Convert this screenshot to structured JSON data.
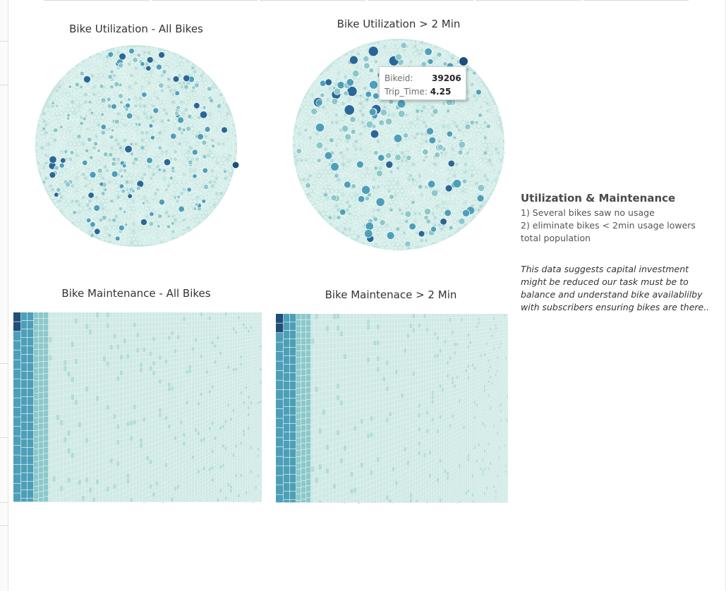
{
  "colors": {
    "light": "#c7e6e1",
    "mid": "#8cc8ca",
    "teal": "#4d9fb9",
    "dark": "#2a6798",
    "darkest": "#1f4e79"
  },
  "chart_data": [
    {
      "type": "packed-bubble",
      "title": "Bike Utilization - All Bikes",
      "highlight": {
        "bikeid": "",
        "trip_time": ""
      }
    },
    {
      "type": "packed-bubble",
      "title": "Bike Utilization > 2 Min",
      "tooltip": {
        "bikeid_label": "Bikeid:",
        "bikeid": "39206",
        "trip_time_label": "Trip_Time:",
        "trip_time": "4.25"
      }
    },
    {
      "type": "treemap",
      "title": "Bike Maintenance - All Bikes"
    },
    {
      "type": "treemap",
      "title": "Bike Maintenace > 2 Min"
    }
  ],
  "notes": {
    "title": "Utilization & Maintenance",
    "line1": "1) Several bikes saw no usage",
    "line2": "2) eliminate bikes < 2min usage lowers",
    "line3": "total population",
    "italic1": "This data suggests capital investment",
    "italic2": "might be reduced our task must be to",
    "italic3": "balance and understand bike availablilby",
    "italic4": "with subscribers  ensuring  bikes are there.."
  }
}
